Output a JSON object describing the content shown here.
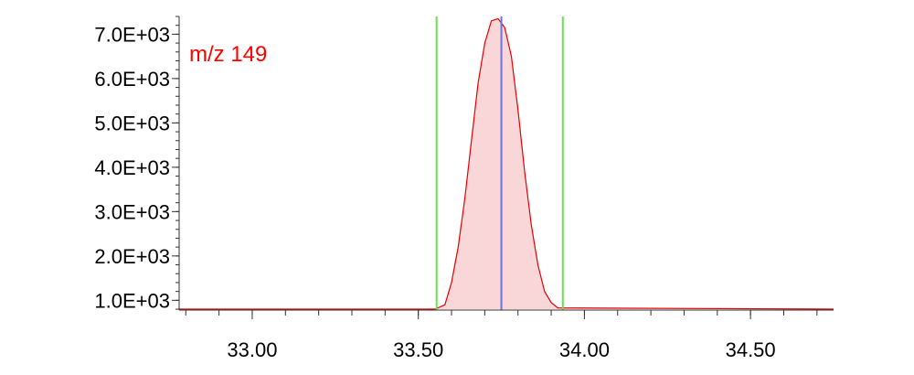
{
  "chart_data": {
    "type": "area",
    "annotation": "m/z 149",
    "xlim": [
      32.78,
      34.75
    ],
    "ylim": [
      780,
      7400
    ],
    "x_ticks": [
      33.0,
      33.5,
      34.0,
      34.5
    ],
    "x_tick_labels": [
      "33.00",
      "33.50",
      "34.00",
      "34.50"
    ],
    "x_minor_step": 0.1,
    "y_ticks": [
      1000,
      2000,
      3000,
      4000,
      5000,
      6000,
      7000
    ],
    "y_tick_labels": [
      "1.0E+03",
      "2.0E+03",
      "3.0E+03",
      "4.0E+03",
      "5.0E+03",
      "6.0E+03",
      "7.0E+03"
    ],
    "y_minor_step": 200,
    "series": [
      {
        "x": [
          32.78,
          33.55,
          33.58,
          33.6,
          33.62,
          33.64,
          33.66,
          33.68,
          33.7,
          33.72,
          33.74,
          33.76,
          33.78,
          33.8,
          33.82,
          33.84,
          33.86,
          33.88,
          33.9,
          33.92,
          34.75
        ],
        "y": [
          800,
          800,
          900,
          1400,
          2200,
          3300,
          4600,
          5900,
          6800,
          7300,
          7350,
          7150,
          6500,
          5300,
          3900,
          2700,
          1800,
          1200,
          950,
          830,
          800
        ]
      }
    ],
    "markers": {
      "boundaries": [
        33.555,
        33.935
      ],
      "apex": 33.75
    },
    "colors": {
      "trace": "#e60000",
      "fill": "#f9d7d9",
      "boundary": "#66e24d",
      "apex": "#6f6fe0",
      "axis": "#333333",
      "annotation": "#ff0000"
    }
  }
}
